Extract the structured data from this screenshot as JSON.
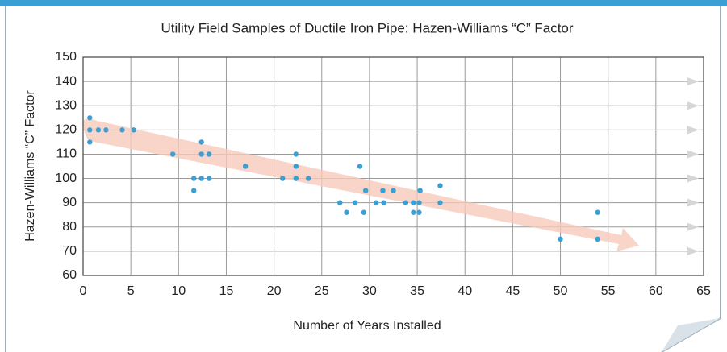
{
  "chart_data": {
    "type": "scatter",
    "title": "Utility Field Samples of Ductile Iron Pipe: Hazen-Williams “C” Factor",
    "x_label": "Number of Years Installed",
    "y_label": "Hazen-Williams “C” Factor",
    "color": "#3a9fd4",
    "grid": true,
    "xlim": [
      0,
      65
    ],
    "xticks": [
      0,
      5,
      10,
      15,
      20,
      25,
      30,
      35,
      40,
      45,
      50,
      55,
      60,
      65
    ],
    "ylim": [
      60,
      150
    ],
    "yticks": [
      60,
      70,
      80,
      90,
      100,
      110,
      120,
      130,
      140,
      150
    ],
    "x": [
      0.7,
      0.7,
      0.7,
      1.6,
      2.4,
      4.1,
      5.3,
      9.4,
      11.6,
      11.6,
      12.4,
      12.4,
      12.4,
      13.2,
      13.2,
      17,
      20.9,
      22.3,
      22.3,
      22.3,
      23.6,
      26.9,
      27.6,
      28.5,
      29,
      29.4,
      29.6,
      30.7,
      31.4,
      31.5,
      32.5,
      33.8,
      34.6,
      34.6,
      35.2,
      35.3,
      35.2,
      37.4,
      37.4,
      50,
      53.9,
      53.9
    ],
    "values": [
      125,
      120,
      115,
      120,
      120,
      120,
      120,
      110,
      100,
      95,
      100,
      115,
      110,
      110,
      100,
      105,
      100,
      110,
      105,
      100,
      100,
      90,
      86,
      90,
      105,
      86,
      95,
      90,
      95,
      90,
      95,
      90,
      90,
      86,
      90,
      95,
      86,
      97,
      90,
      75,
      86,
      75
    ]
  }
}
